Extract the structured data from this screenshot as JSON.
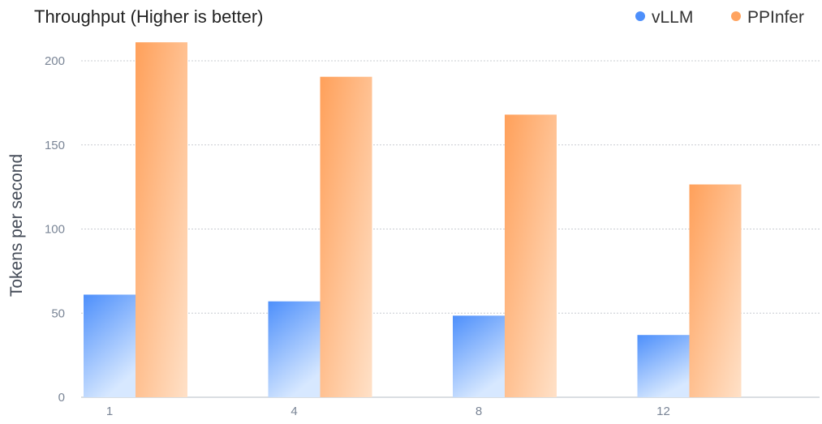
{
  "chart_data": {
    "type": "bar",
    "title": "Throughput (Higher is better)",
    "ylabel": "Tokens per second",
    "xlabel": "",
    "categories": [
      "1",
      "4",
      "8",
      "12"
    ],
    "series": [
      {
        "name": "vLLM",
        "values": [
          61,
          57,
          48.5,
          37
        ],
        "color": "#4d8ffb"
      },
      {
        "name": "PPInfer",
        "values": [
          211,
          190.5,
          168,
          126.5
        ],
        "color": "#ffa35f"
      }
    ],
    "ylim": [
      0,
      211
    ],
    "yticks": [
      0,
      50,
      100,
      150,
      200
    ],
    "grid": true,
    "legend": "top-right"
  }
}
